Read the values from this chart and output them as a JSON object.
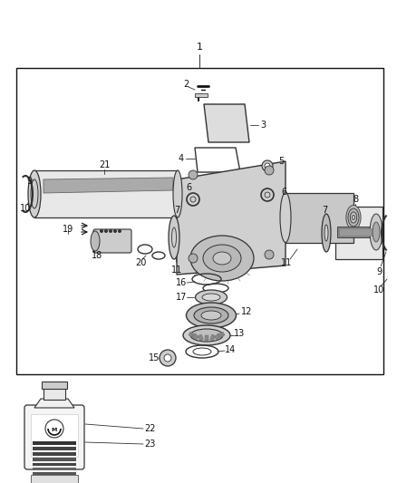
{
  "bg": "#ffffff",
  "fig_w": 4.38,
  "fig_h": 5.33,
  "dpi": 100,
  "gray_light": "#e8e8e8",
  "gray_mid": "#cccccc",
  "gray_dark": "#888888",
  "edge": "#333333",
  "black": "#111111"
}
